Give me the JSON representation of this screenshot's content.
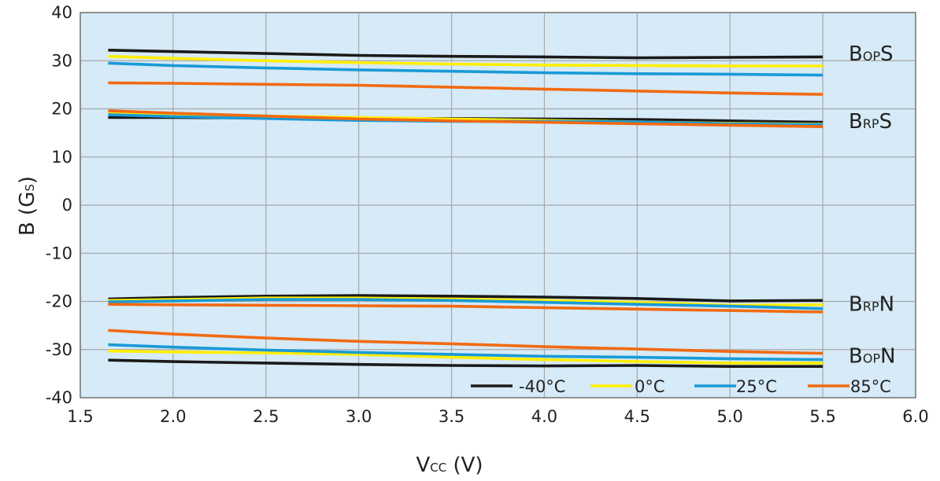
{
  "chart_data": {
    "type": "line",
    "xlabel": {
      "main": "V",
      "sub": "CC",
      "tail": " (V)"
    },
    "ylabel": {
      "main": "B (G",
      "sub": "S",
      "tail": ")"
    },
    "xlim": [
      1.5,
      6.0
    ],
    "ylim": [
      -40,
      40
    ],
    "xticks": [
      "1.5",
      "2.0",
      "2.5",
      "3.0",
      "3.5",
      "4.0",
      "4.5",
      "5.0",
      "5.5",
      "6.0"
    ],
    "yticks": [
      "40",
      "30",
      "20",
      "10",
      "0",
      "-10",
      "-20",
      "-30",
      "-40"
    ],
    "grid": true,
    "legend_position": "bottom-right",
    "colors": {
      "plot_background": "#d6eaf7",
      "grid": "#a8a8a8",
      "-40C": "#1a1a1a",
      "0C": "#ffee00",
      "25C": "#1a9ad6",
      "85C": "#f26a12"
    },
    "legend": [
      {
        "key": "-40C",
        "label": "-40°C"
      },
      {
        "key": "0C",
        "label": "0°C"
      },
      {
        "key": "25C",
        "label": "25°C"
      },
      {
        "key": "85C",
        "label": "85°C"
      }
    ],
    "x": [
      1.65,
      2.0,
      2.5,
      3.0,
      3.5,
      4.0,
      4.5,
      5.0,
      5.5
    ],
    "groups": [
      {
        "label": {
          "main": "B",
          "sub": "OP",
          "tail": "S"
        },
        "label_y": 31.5,
        "series": [
          {
            "temp": "-40C",
            "values": [
              32.2,
              31.9,
              31.5,
              31.1,
              30.9,
              30.8,
              30.6,
              30.7,
              30.8
            ]
          },
          {
            "temp": "0C",
            "values": [
              30.9,
              30.5,
              30.0,
              29.6,
              29.3,
              29.1,
              29.0,
              28.9,
              28.9
            ]
          },
          {
            "temp": "25C",
            "values": [
              29.5,
              29.0,
              28.5,
              28.1,
              27.8,
              27.5,
              27.3,
              27.2,
              27.0
            ]
          },
          {
            "temp": "85C",
            "values": [
              25.4,
              25.3,
              25.1,
              24.9,
              24.5,
              24.1,
              23.7,
              23.3,
              23.0
            ]
          }
        ]
      },
      {
        "label": {
          "main": "B",
          "sub": "RP",
          "tail": "S"
        },
        "label_y": 17.5,
        "series": [
          {
            "temp": "-40C",
            "values": [
              18.2,
              18.2,
              18.1,
              18.0,
              18.0,
              17.9,
              17.8,
              17.5,
              17.2
            ]
          },
          {
            "temp": "0C",
            "values": [
              19.2,
              18.9,
              18.5,
              18.2,
              17.9,
              17.6,
              17.3,
              17.0,
              16.8
            ]
          },
          {
            "temp": "25C",
            "values": [
              18.8,
              18.4,
              18.0,
              17.6,
              17.4,
              17.4,
              17.3,
              16.9,
              16.7
            ]
          },
          {
            "temp": "85C",
            "values": [
              19.6,
              19.1,
              18.5,
              17.9,
              17.5,
              17.2,
              16.9,
              16.6,
              16.3
            ]
          }
        ]
      },
      {
        "label": {
          "main": "B",
          "sub": "RP",
          "tail": "N"
        },
        "label_y": -20.5,
        "series": [
          {
            "temp": "-40C",
            "values": [
              -19.5,
              -19.2,
              -18.9,
              -18.8,
              -18.9,
              -19.1,
              -19.4,
              -19.9,
              -19.8
            ]
          },
          {
            "temp": "0C",
            "values": [
              -19.8,
              -19.6,
              -19.3,
              -19.3,
              -19.5,
              -19.8,
              -20.2,
              -20.8,
              -20.7
            ]
          },
          {
            "temp": "25C",
            "values": [
              -20.1,
              -19.9,
              -19.6,
              -19.6,
              -19.8,
              -20.2,
              -20.6,
              -21.0,
              -21.5
            ]
          },
          {
            "temp": "85C",
            "values": [
              -20.6,
              -20.7,
              -20.8,
              -20.9,
              -21.0,
              -21.3,
              -21.6,
              -21.9,
              -22.2
            ]
          }
        ]
      },
      {
        "label": {
          "main": "B",
          "sub": "OP",
          "tail": "N"
        },
        "label_y": -31.3,
        "series": [
          {
            "temp": "-40C",
            "values": [
              -32.2,
              -32.5,
              -32.8,
              -33.1,
              -33.3,
              -33.4,
              -33.3,
              -33.5,
              -33.5
            ]
          },
          {
            "temp": "0C",
            "values": [
              -30.3,
              -30.5,
              -30.7,
              -31.0,
              -31.6,
              -32.1,
              -32.5,
              -32.8,
              -32.8
            ]
          },
          {
            "temp": "25C",
            "values": [
              -29.0,
              -29.5,
              -30.1,
              -30.6,
              -31.0,
              -31.4,
              -31.6,
              -31.9,
              -32.1
            ]
          },
          {
            "temp": "85C",
            "values": [
              -26.0,
              -26.8,
              -27.6,
              -28.3,
              -28.8,
              -29.4,
              -29.9,
              -30.4,
              -30.8
            ]
          }
        ]
      }
    ]
  }
}
